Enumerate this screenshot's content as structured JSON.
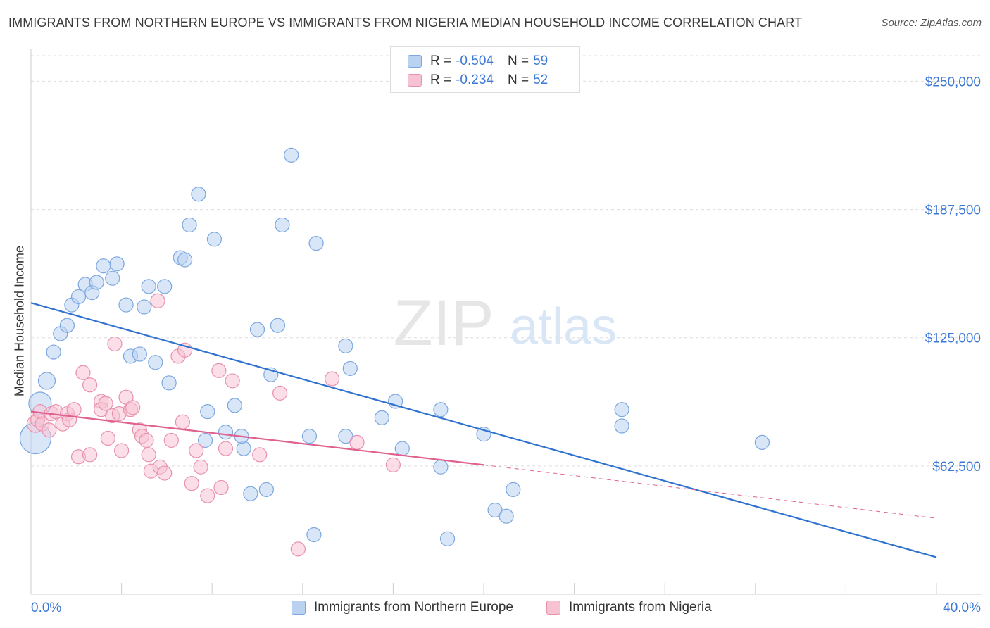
{
  "title": "IMMIGRANTS FROM NORTHERN EUROPE VS IMMIGRANTS FROM NIGERIA MEDIAN HOUSEHOLD INCOME CORRELATION CHART",
  "source": "Source: ZipAtlas.com",
  "watermark": {
    "zip": "ZIP",
    "atlas": "atlas"
  },
  "legend_top": {
    "rows": [
      {
        "r_label": "R =",
        "r_value": "-0.504",
        "n_label": "N =",
        "n_value": "59"
      },
      {
        "r_label": "R =",
        "r_value": "-0.234",
        "n_label": "N =",
        "n_value": "52"
      }
    ]
  },
  "legend_bottom": [
    "Immigrants from Northern Europe",
    "Immigrants from Nigeria"
  ],
  "colors": {
    "blue_fill": "#b9d2f2",
    "blue_stroke": "#7aa7e0",
    "blue_line": "#2f72d0",
    "pink_fill": "#f7c3d3",
    "pink_stroke": "#e891ad",
    "pink_line": "#e0608f",
    "tick_label": "#3b78d8",
    "grid": "#dddddd"
  },
  "chart_data": {
    "type": "scatter",
    "title": "IMMIGRANTS FROM NORTHERN EUROPE VS IMMIGRANTS FROM NIGERIA MEDIAN HOUSEHOLD INCOME CORRELATION CHART",
    "xlabel": "",
    "ylabel": "Median Household Income",
    "xlim": [
      0,
      40
    ],
    "ylim": [
      0,
      262500
    ],
    "x_tick_labels": [
      "0.0%",
      "40.0%"
    ],
    "y_ticks": [
      62500,
      125000,
      187500,
      250000
    ],
    "y_tick_labels": [
      "$62,500",
      "$125,000",
      "$187,500",
      "$250,000"
    ],
    "grid": true,
    "legend_position": "top-center",
    "series": [
      {
        "name": "Immigrants from Northern Europe",
        "color": "#7aa7e0",
        "points": [
          [
            0.2,
            76000,
            22
          ],
          [
            0.4,
            93000,
            16
          ],
          [
            0.7,
            104000,
            12
          ],
          [
            1.0,
            118000,
            10
          ],
          [
            1.3,
            127000,
            10
          ],
          [
            1.6,
            131000,
            10
          ],
          [
            1.8,
            141000,
            10
          ],
          [
            2.1,
            145000,
            10
          ],
          [
            2.4,
            151000,
            10
          ],
          [
            2.7,
            147000,
            10
          ],
          [
            2.9,
            152000,
            10
          ],
          [
            3.2,
            160000,
            10
          ],
          [
            3.6,
            154000,
            10
          ],
          [
            3.8,
            161000,
            10
          ],
          [
            4.2,
            141000,
            10
          ],
          [
            4.4,
            116000,
            10
          ],
          [
            4.8,
            117000,
            10
          ],
          [
            5.0,
            140000,
            10
          ],
          [
            5.2,
            150000,
            10
          ],
          [
            5.5,
            113000,
            10
          ],
          [
            5.9,
            150000,
            10
          ],
          [
            6.1,
            103000,
            10
          ],
          [
            6.6,
            164000,
            10
          ],
          [
            6.8,
            163000,
            10
          ],
          [
            7.0,
            180000,
            10
          ],
          [
            7.4,
            195000,
            10
          ],
          [
            7.7,
            75000,
            10
          ],
          [
            7.8,
            89000,
            10
          ],
          [
            8.1,
            173000,
            10
          ],
          [
            8.6,
            79000,
            10
          ],
          [
            9.0,
            92000,
            10
          ],
          [
            9.4,
            71000,
            10
          ],
          [
            9.3,
            77000,
            10
          ],
          [
            9.7,
            49000,
            10
          ],
          [
            10.0,
            129000,
            10
          ],
          [
            10.4,
            51000,
            10
          ],
          [
            10.6,
            107000,
            10
          ],
          [
            10.9,
            131000,
            10
          ],
          [
            11.1,
            180000,
            10
          ],
          [
            11.5,
            214000,
            10
          ],
          [
            12.3,
            77000,
            10
          ],
          [
            12.5,
            29000,
            10
          ],
          [
            12.6,
            171000,
            10
          ],
          [
            13.9,
            77000,
            10
          ],
          [
            13.9,
            121000,
            10
          ],
          [
            14.1,
            110000,
            10
          ],
          [
            15.5,
            86000,
            10
          ],
          [
            16.1,
            94000,
            10
          ],
          [
            16.4,
            71000,
            10
          ],
          [
            18.1,
            90000,
            10
          ],
          [
            18.1,
            62000,
            10
          ],
          [
            18.4,
            27000,
            10
          ],
          [
            20.0,
            78000,
            10
          ],
          [
            20.5,
            41000,
            10
          ],
          [
            21.0,
            38000,
            10
          ],
          [
            21.3,
            51000,
            10
          ],
          [
            26.1,
            90000,
            10
          ],
          [
            26.1,
            82000,
            10
          ],
          [
            32.3,
            74000,
            10
          ]
        ]
      },
      {
        "name": "Immigrants from Nigeria",
        "color": "#e891ad",
        "points": [
          [
            0.2,
            83000,
            12
          ],
          [
            0.3,
            85000,
            10
          ],
          [
            0.4,
            89000,
            10
          ],
          [
            0.5,
            83000,
            10
          ],
          [
            0.8,
            80000,
            10
          ],
          [
            0.9,
            88000,
            10
          ],
          [
            1.1,
            89000,
            10
          ],
          [
            1.4,
            83000,
            10
          ],
          [
            1.6,
            88000,
            10
          ],
          [
            1.7,
            85000,
            10
          ],
          [
            1.9,
            90000,
            10
          ],
          [
            2.1,
            67000,
            10
          ],
          [
            2.3,
            108000,
            10
          ],
          [
            2.6,
            68000,
            10
          ],
          [
            2.6,
            102000,
            10
          ],
          [
            3.1,
            94000,
            10
          ],
          [
            3.1,
            90000,
            10
          ],
          [
            3.3,
            93000,
            10
          ],
          [
            3.4,
            76000,
            10
          ],
          [
            3.6,
            87000,
            10
          ],
          [
            3.7,
            122000,
            10
          ],
          [
            3.9,
            88000,
            10
          ],
          [
            4.0,
            70000,
            10
          ],
          [
            4.2,
            96000,
            10
          ],
          [
            4.4,
            90000,
            10
          ],
          [
            4.5,
            91000,
            10
          ],
          [
            4.8,
            80000,
            10
          ],
          [
            4.9,
            77000,
            10
          ],
          [
            5.1,
            75000,
            10
          ],
          [
            5.2,
            68000,
            10
          ],
          [
            5.3,
            60000,
            10
          ],
          [
            5.6,
            143000,
            10
          ],
          [
            5.7,
            62000,
            10
          ],
          [
            5.9,
            59000,
            10
          ],
          [
            6.2,
            75000,
            10
          ],
          [
            6.5,
            116000,
            10
          ],
          [
            6.7,
            84000,
            10
          ],
          [
            6.8,
            119000,
            10
          ],
          [
            7.1,
            54000,
            10
          ],
          [
            7.3,
            70000,
            10
          ],
          [
            7.5,
            62000,
            10
          ],
          [
            7.8,
            48000,
            10
          ],
          [
            8.3,
            109000,
            10
          ],
          [
            8.4,
            52000,
            10
          ],
          [
            8.6,
            71000,
            10
          ],
          [
            8.9,
            104000,
            10
          ],
          [
            10.1,
            68000,
            10
          ],
          [
            11.0,
            98000,
            10
          ],
          [
            11.8,
            22000,
            10
          ],
          [
            13.3,
            105000,
            10
          ],
          [
            14.4,
            74000,
            10
          ],
          [
            16.0,
            63000,
            10
          ]
        ]
      }
    ],
    "trendlines": [
      {
        "series": "Immigrants from Northern Europe",
        "x": [
          0,
          40
        ],
        "y": [
          142000,
          18000
        ],
        "style": "solid"
      },
      {
        "series": "Immigrants from Nigeria",
        "x": [
          0,
          20
        ],
        "y": [
          89000,
          63000
        ],
        "style": "solid"
      },
      {
        "series": "Immigrants from Nigeria",
        "x": [
          20,
          40
        ],
        "y": [
          63000,
          37000
        ],
        "style": "dashed"
      }
    ]
  }
}
